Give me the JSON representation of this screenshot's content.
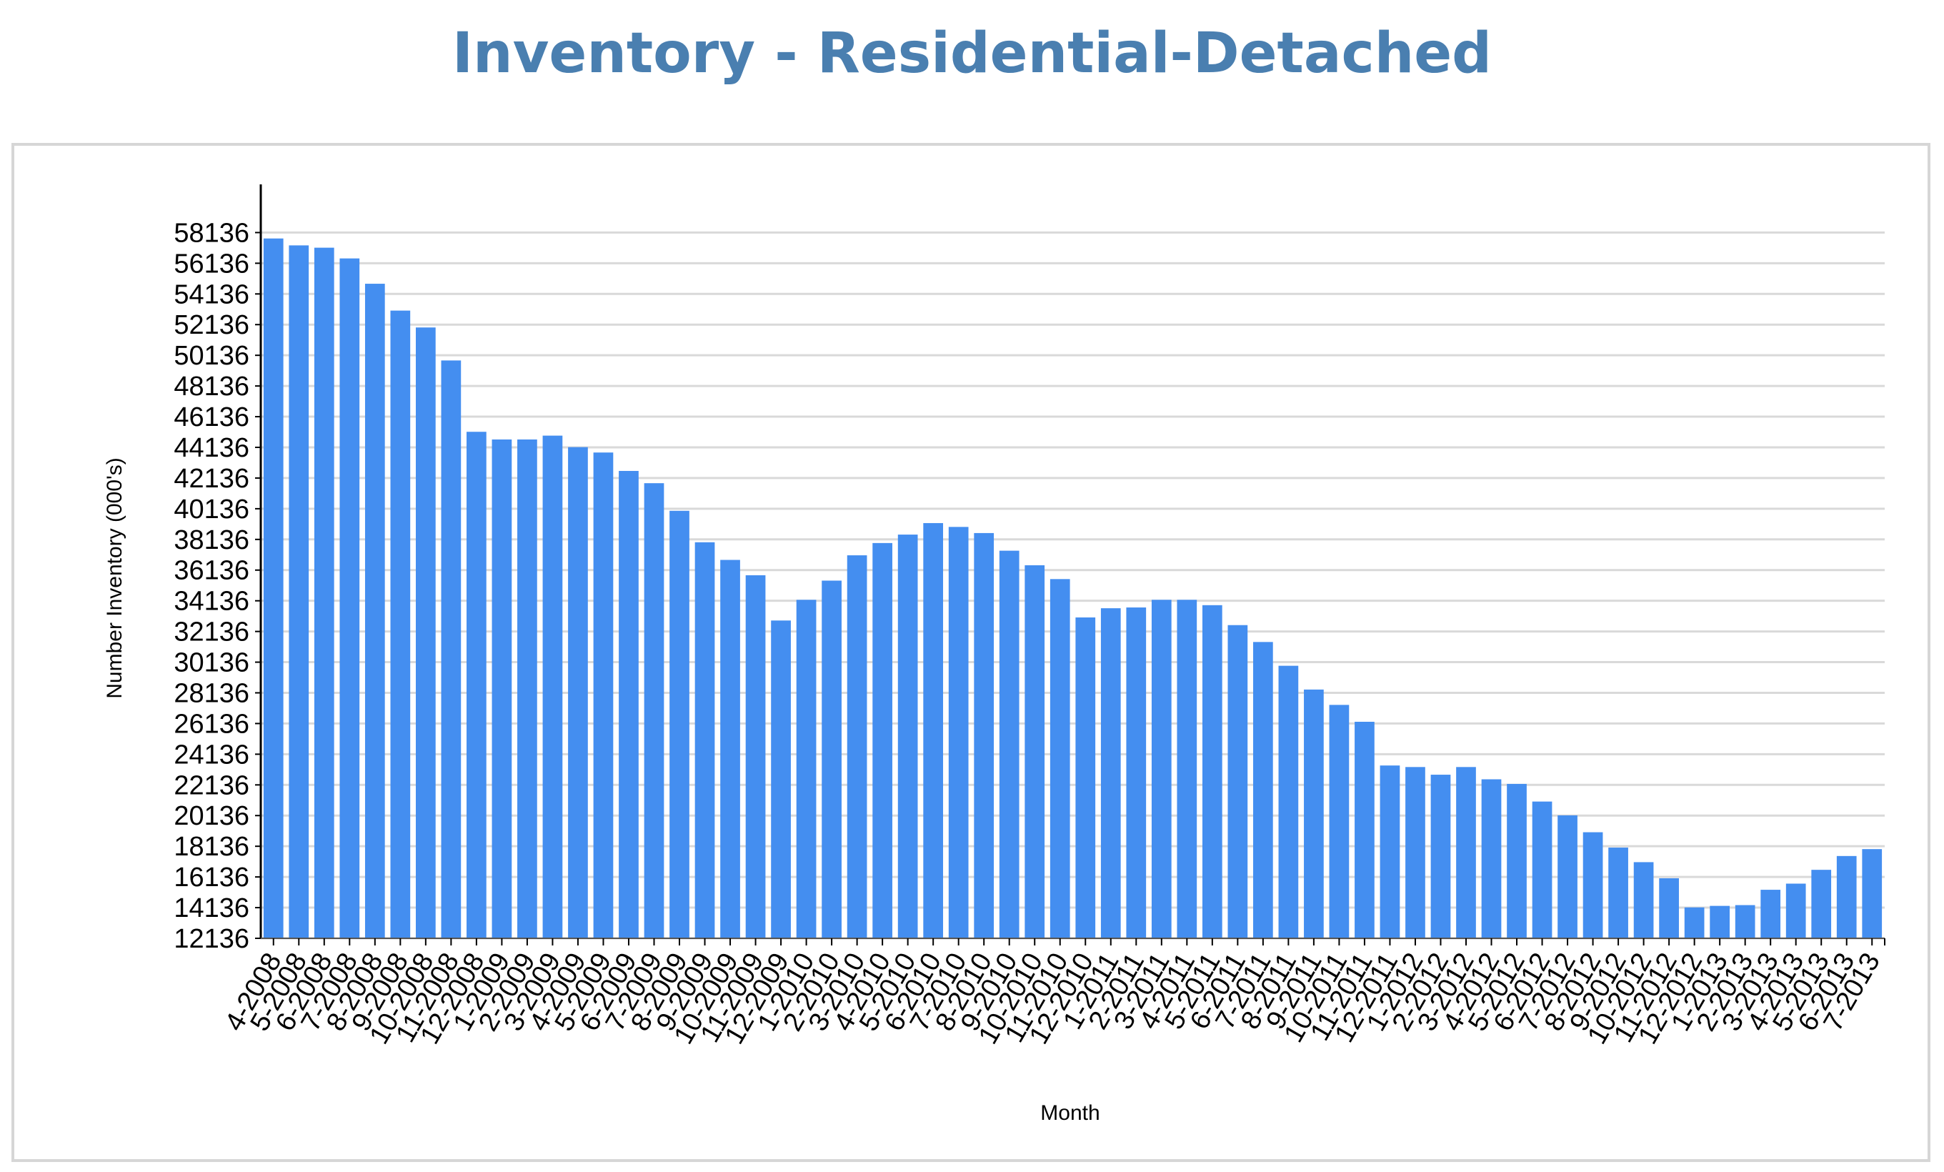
{
  "title": "Inventory - Residential-Detached",
  "chart_data": {
    "type": "bar",
    "title": "Inventory - Residential-Detached",
    "xlabel": "Month",
    "ylabel": "Number Inventory (000's)",
    "ylim": [
      12136,
      59600
    ],
    "yticks": [
      12136,
      14136,
      16136,
      18136,
      20136,
      22136,
      24136,
      26136,
      28136,
      30136,
      32136,
      34136,
      36136,
      38136,
      40136,
      42136,
      44136,
      46136,
      48136,
      50136,
      52136,
      54136,
      56136,
      58136
    ],
    "grid": true,
    "bar_color": "#448ef0",
    "categories": [
      "4-2008",
      "5-2008",
      "6-2008",
      "7-2008",
      "8-2008",
      "9-2008",
      "10-2008",
      "11-2008",
      "12-2008",
      "1-2009",
      "2-2009",
      "3-2009",
      "4-2009",
      "5-2009",
      "6-2009",
      "7-2009",
      "8-2009",
      "9-2009",
      "10-2009",
      "11-2009",
      "12-2009",
      "1-2010",
      "2-2010",
      "3-2010",
      "4-2010",
      "5-2010",
      "6-2010",
      "7-2010",
      "8-2010",
      "9-2010",
      "10-2010",
      "11-2010",
      "12-2010",
      "1-2011",
      "2-2011",
      "3-2011",
      "4-2011",
      "5-2011",
      "6-2011",
      "7-2011",
      "8-2011",
      "9-2011",
      "10-2011",
      "11-2011",
      "12-2011",
      "1-2012",
      "2-2012",
      "3-2012",
      "4-2012",
      "5-2012",
      "6-2012",
      "7-2012",
      "8-2012",
      "9-2012",
      "10-2012",
      "11-2012",
      "12-2012",
      "1-2013",
      "2-2013",
      "3-2013",
      "4-2013",
      "5-2013",
      "6-2013",
      "7-2013"
    ],
    "values": [
      57750,
      57300,
      57150,
      56450,
      54800,
      53050,
      51950,
      49800,
      45150,
      44650,
      44650,
      44900,
      44150,
      43800,
      42600,
      41800,
      40000,
      37950,
      36800,
      35800,
      32850,
      34200,
      35450,
      37100,
      37900,
      38450,
      39200,
      38950,
      38550,
      37400,
      36450,
      35550,
      33050,
      33650,
      33700,
      34200,
      34200,
      33850,
      32550,
      31450,
      29900,
      28350,
      27350,
      26250,
      23400,
      23300,
      22800,
      23300,
      22500,
      22200,
      21050,
      20150,
      19050,
      18050,
      17100,
      16050,
      14150,
      14250,
      14300,
      15300,
      15700,
      16600,
      17500,
      17950
    ]
  }
}
